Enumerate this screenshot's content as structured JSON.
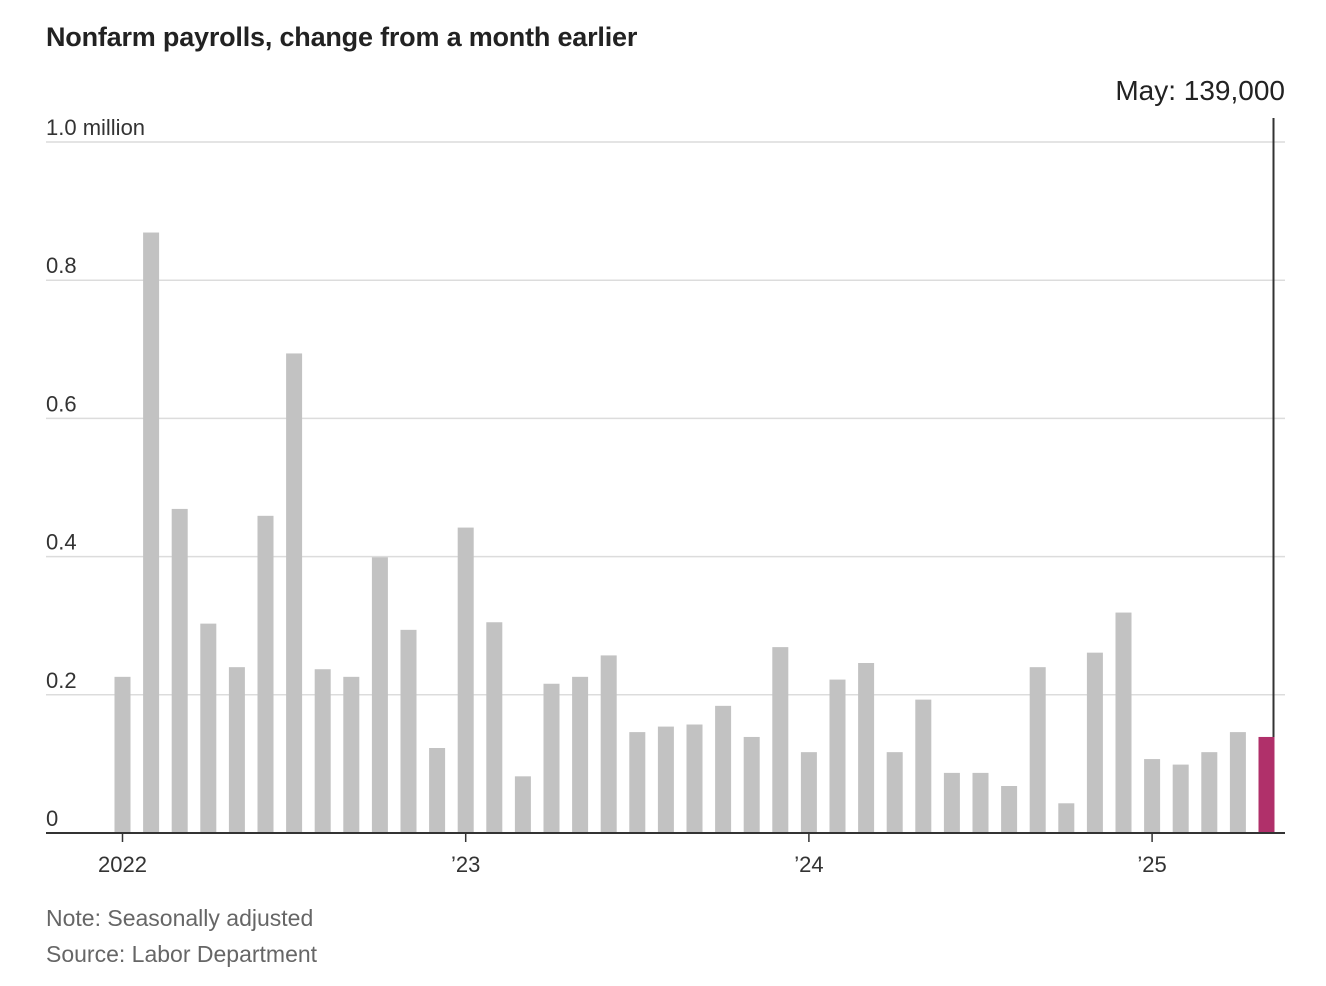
{
  "chart_data": {
    "type": "bar",
    "title": "Nonfarm payrolls, change from a month earlier",
    "y_unit_label": "1.0 million",
    "ylim": [
      0,
      1.0
    ],
    "yticks": [
      0,
      0.2,
      0.4,
      0.6,
      0.8,
      1.0
    ],
    "ytick_labels": [
      "0",
      "0.2",
      "0.4",
      "0.6",
      "0.8",
      "1.0 million"
    ],
    "x_tick_labels": [
      {
        "label": "2022",
        "month": "2022-01"
      },
      {
        "label": "’23",
        "month": "2023-01"
      },
      {
        "label": "’24",
        "month": "2024-01"
      },
      {
        "label": "’25",
        "month": "2025-01"
      }
    ],
    "categories": [
      "2022-01",
      "2022-02",
      "2022-03",
      "2022-04",
      "2022-05",
      "2022-06",
      "2022-07",
      "2022-08",
      "2022-09",
      "2022-10",
      "2022-11",
      "2022-12",
      "2023-01",
      "2023-02",
      "2023-03",
      "2023-04",
      "2023-05",
      "2023-06",
      "2023-07",
      "2023-08",
      "2023-09",
      "2023-10",
      "2023-11",
      "2023-12",
      "2024-01",
      "2024-02",
      "2024-03",
      "2024-04",
      "2024-05",
      "2024-06",
      "2024-07",
      "2024-08",
      "2024-09",
      "2024-10",
      "2024-11",
      "2024-12",
      "2025-01",
      "2025-02",
      "2025-03",
      "2025-04",
      "2025-05"
    ],
    "values": [
      0.226,
      0.869,
      0.469,
      0.303,
      0.24,
      0.459,
      0.694,
      0.237,
      0.226,
      0.399,
      0.294,
      0.123,
      0.442,
      0.305,
      0.082,
      0.216,
      0.226,
      0.257,
      0.146,
      0.154,
      0.157,
      0.184,
      0.139,
      0.269,
      0.117,
      0.222,
      0.246,
      0.117,
      0.193,
      0.087,
      0.087,
      0.068,
      0.24,
      0.043,
      0.261,
      0.319,
      0.107,
      0.099,
      0.117,
      0.146,
      0.139
    ],
    "highlight_index": 40,
    "bar_color": "#c2c2c2",
    "highlight_color": "#b0306a",
    "annotation": "May: 139,000",
    "grid": true
  },
  "notes": {
    "note": "Note: Seasonally adjusted",
    "source": "Source: Labor Department"
  }
}
